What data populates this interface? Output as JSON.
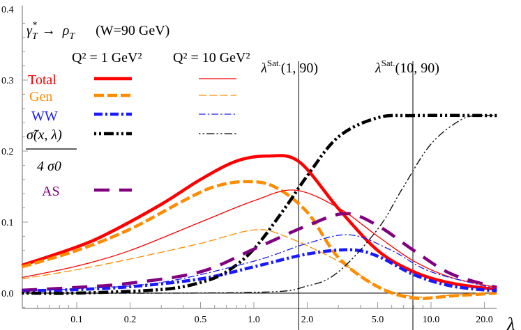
{
  "chart_data": {
    "type": "line",
    "title": {
      "process_lhs": "γ",
      "process_lhs_sup": "*",
      "process_lhs_sub": "T",
      "arrow": "→",
      "process_rhs": "ρ",
      "process_rhs_sub": "T",
      "energy": "(W=90 GeV)"
    },
    "column_headers": [
      "Q² = 1 GeV²",
      "Q² = 10 GeV²"
    ],
    "xlabel": "λ",
    "ylabel": "",
    "xscale": "log",
    "xlim": [
      0.049,
      23.5
    ],
    "ylim": [
      -0.03,
      0.4
    ],
    "xticks": [
      "0.1",
      "0.2",
      "0.5",
      "1.0",
      "2.0",
      "5.0",
      "10.0",
      "20.0"
    ],
    "yticks": [
      "0.0",
      "0.1",
      "0.2",
      "0.3",
      "0.4"
    ],
    "legend": {
      "placement": "top-left",
      "entries": [
        "Total",
        "Gen",
        "WW",
        "σ̃(x, λ) / 4 σ0",
        "AS"
      ],
      "sigma_num": "σ̃(x, λ)",
      "sigma_den": "4 σ0"
    },
    "vlines": [
      {
        "x": 1.79,
        "label": "λ",
        "sup": "Sat.",
        "args": "(1, 90)"
      },
      {
        "x": 7.9,
        "label": "λ",
        "sup": "Sat.",
        "args": "(10, 90)"
      }
    ],
    "series": [
      {
        "name": "Total",
        "q2": 1,
        "color": "#ff0000",
        "style": "solid",
        "thick": true,
        "x": [
          0.049,
          0.1,
          0.15,
          0.3,
          0.5,
          0.8,
          1.2,
          1.8,
          3,
          5,
          8,
          13,
          23.5
        ],
        "y": [
          0.039,
          0.065,
          0.084,
          0.125,
          0.16,
          0.186,
          0.193,
          0.185,
          0.119,
          0.06,
          0.03,
          0.014,
          0.005
        ]
      },
      {
        "name": "Gen",
        "q2": 1,
        "color": "#ff8c00",
        "style": "dash",
        "thick": true,
        "x": [
          0.049,
          0.1,
          0.2,
          0.4,
          0.6,
          0.9,
          1.3,
          2,
          3,
          5,
          8,
          13,
          23.5
        ],
        "y": [
          0.037,
          0.06,
          0.09,
          0.13,
          0.15,
          0.157,
          0.15,
          0.114,
          0.05,
          0.009,
          -0.007,
          -0.004,
          0.0
        ]
      },
      {
        "name": "WW",
        "q2": 1,
        "color": "#1a1aff",
        "style": "dashdot",
        "thick": true,
        "x": [
          0.049,
          0.1,
          0.2,
          0.5,
          1,
          2,
          3.5,
          5,
          8,
          13,
          23.5
        ],
        "y": [
          0.003,
          0.005,
          0.009,
          0.02,
          0.037,
          0.055,
          0.061,
          0.052,
          0.026,
          0.01,
          0.003
        ]
      },
      {
        "name": "σ̃(x, λ) / 4 σ0",
        "q2": 1,
        "color": "#000000",
        "style": "dotdotdash",
        "thick": true,
        "x": [
          0.049,
          0.1,
          0.3,
          0.5,
          0.7,
          1,
          1.5,
          2,
          3,
          5,
          8,
          23.5
        ],
        "y": [
          0.0,
          0.0,
          0.005,
          0.015,
          0.03,
          0.062,
          0.12,
          0.165,
          0.22,
          0.247,
          0.25,
          0.25
        ]
      },
      {
        "name": "AS",
        "q2": 1,
        "color": "#800080",
        "style": "longdash",
        "thick": true,
        "x": [
          0.049,
          0.1,
          0.2,
          0.5,
          1,
          2,
          3.3,
          5,
          8,
          13,
          23.5
        ],
        "y": [
          0.004,
          0.008,
          0.014,
          0.03,
          0.062,
          0.095,
          0.112,
          0.095,
          0.06,
          0.027,
          0.008
        ]
      },
      {
        "name": "Total",
        "q2": 10,
        "color": "#ff0000",
        "style": "solid",
        "thick": false,
        "x": [
          0.049,
          0.1,
          0.2,
          0.5,
          1,
          1.7,
          3,
          5,
          8,
          13,
          23.5
        ],
        "y": [
          0.022,
          0.038,
          0.06,
          0.1,
          0.13,
          0.145,
          0.12,
          0.08,
          0.045,
          0.022,
          0.008
        ]
      },
      {
        "name": "Gen",
        "q2": 10,
        "color": "#ff8c00",
        "style": "dash",
        "thick": false,
        "x": [
          0.049,
          0.1,
          0.2,
          0.5,
          1,
          1.5,
          3,
          5,
          8,
          13,
          23.5
        ],
        "y": [
          0.02,
          0.033,
          0.048,
          0.07,
          0.089,
          0.08,
          0.045,
          0.01,
          -0.005,
          -0.003,
          0.0
        ]
      },
      {
        "name": "WW",
        "q2": 10,
        "color": "#1a1aff",
        "style": "dashdot",
        "thick": false,
        "x": [
          0.049,
          0.1,
          0.3,
          1,
          2,
          3.5,
          6,
          10,
          23.5
        ],
        "y": [
          0.004,
          0.006,
          0.015,
          0.045,
          0.07,
          0.082,
          0.06,
          0.03,
          0.006
        ]
      },
      {
        "name": "σ̃(x, λ) / 4 σ0",
        "q2": 10,
        "color": "#000000",
        "style": "dotdotdash",
        "thick": false,
        "x": [
          0.049,
          1,
          2,
          3,
          5,
          7,
          10,
          15,
          20,
          23.5
        ],
        "y": [
          0.0,
          0.001,
          0.01,
          0.03,
          0.09,
          0.15,
          0.21,
          0.245,
          0.25,
          0.25
        ]
      }
    ]
  }
}
